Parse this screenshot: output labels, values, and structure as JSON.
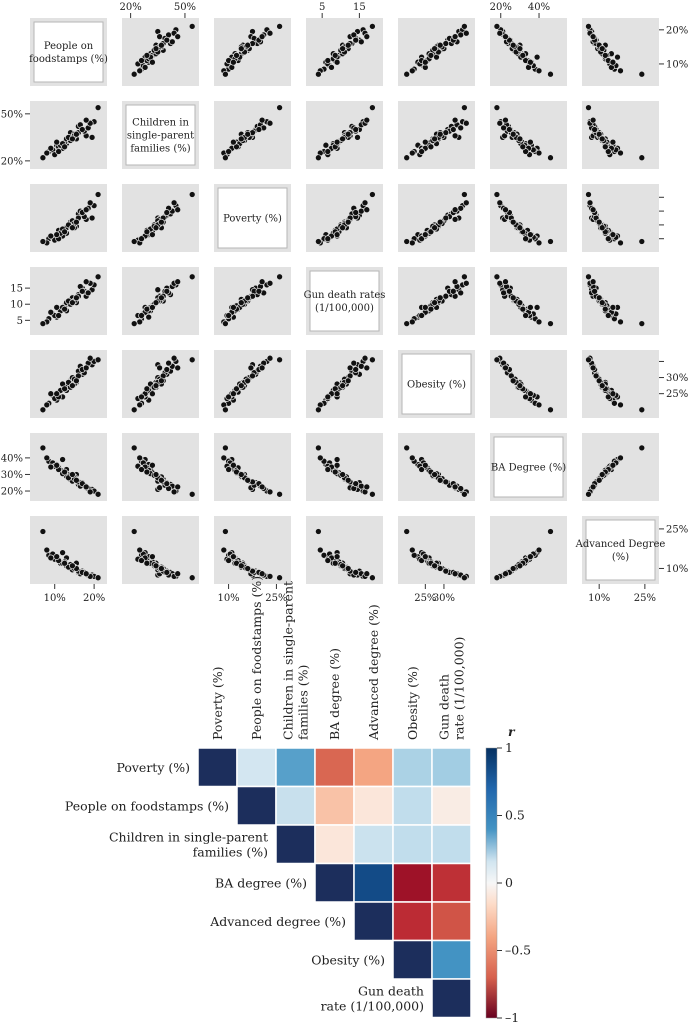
{
  "colors": {
    "panel_bg": "#e2e2e2",
    "point": "#111111",
    "diag_border": "#b5b5b5",
    "scale_neg": "#67001f",
    "scale_mid": "#f7f7f7",
    "scale_pos": "#053061"
  },
  "chart_data": [
    {
      "type": "scatter",
      "kind": "scatterplot-matrix",
      "variables": [
        {
          "label": "People on foodstamps (%)",
          "range": [
            5,
            22
          ]
        },
        {
          "label": "Children in single-parent families (%)",
          "range": [
            18,
            55
          ]
        },
        {
          "label": "Poverty (%)",
          "range": [
            7,
            28
          ]
        },
        {
          "label": "Gun death rates (1/100,000)",
          "range": [
            2,
            20
          ]
        },
        {
          "label": "Obesity (%)",
          "range": [
            19,
            37
          ]
        },
        {
          "label": "BA Degree (%)",
          "range": [
            17,
            52
          ]
        },
        {
          "label": "Advanced Degree (%)",
          "range": [
            6,
            28
          ]
        }
      ],
      "top_axis": [
        {
          "col": 1,
          "ticks": [
            20,
            50
          ],
          "labels": [
            "20%",
            "50%"
          ]
        },
        {
          "col": 3,
          "ticks": [
            5,
            15
          ],
          "labels": [
            "5",
            "15"
          ]
        },
        {
          "col": 5,
          "ticks": [
            20,
            40
          ],
          "labels": [
            "20%",
            "40%"
          ]
        }
      ],
      "bottom_axis": [
        {
          "col": 0,
          "ticks": [
            10,
            20
          ],
          "labels": [
            "10%",
            "20%"
          ]
        },
        {
          "col": 2,
          "ticks": [
            10,
            25
          ],
          "labels": [
            "10%",
            "25%"
          ]
        },
        {
          "col": 4,
          "ticks": [
            25,
            30
          ],
          "labels": [
            "25%",
            "30%"
          ]
        },
        {
          "col": 6,
          "ticks": [
            10,
            25
          ],
          "labels": [
            "10%",
            "25%"
          ]
        }
      ],
      "left_axis": [
        {
          "row": 1,
          "ticks": [
            20,
            50
          ],
          "labels": [
            "20%",
            "50%"
          ]
        },
        {
          "row": 3,
          "ticks": [
            5,
            10,
            15
          ],
          "labels": [
            "5",
            "10",
            "15"
          ]
        },
        {
          "row": 5,
          "ticks": [
            20,
            30,
            40
          ],
          "labels": [
            "20%",
            "30%",
            "40%"
          ]
        }
      ],
      "right_axis": [
        {
          "row": 0,
          "ticks": [
            10,
            20
          ],
          "labels": [
            "10%",
            "20%"
          ]
        },
        {
          "row": 2,
          "ticks": [
            10,
            15,
            20,
            25
          ],
          "labels": [
            "",
            "",
            "",
            ""
          ]
        },
        {
          "row": 4,
          "ticks": [
            25,
            30,
            35
          ],
          "labels": [
            "25%",
            "30%",
            ""
          ]
        },
        {
          "row": 6,
          "ticks": [
            10,
            25
          ],
          "labels": [
            "10%",
            "25%"
          ]
        }
      ],
      "points": [
        [
          15.5,
          34,
          14.5,
          10.5,
          28.5,
          30,
          12
        ],
        [
          13,
          31,
          12,
          8,
          26,
          33,
          14
        ],
        [
          17,
          40,
          18.5,
          15,
          31,
          25,
          9
        ],
        [
          19.5,
          35,
          17.5,
          14.5,
          34,
          21,
          7.5
        ],
        [
          10.5,
          30,
          11.5,
          6,
          23,
          36,
          14.5
        ],
        [
          12,
          28,
          11,
          9,
          24,
          39,
          16
        ],
        [
          14,
          38,
          16,
          11,
          29,
          27,
          10
        ],
        [
          8.5,
          26,
          10,
          5.5,
          22,
          38,
          15
        ],
        [
          16,
          42,
          19,
          13,
          32,
          24,
          8.5
        ],
        [
          18,
          36,
          17,
          12.5,
          33,
          22,
          8
        ],
        [
          11,
          29,
          13,
          8.5,
          25.5,
          34,
          13
        ],
        [
          13.5,
          33,
          15,
          10,
          27.5,
          30,
          11
        ],
        [
          15,
          37,
          14,
          11.5,
          28,
          28.5,
          10.5
        ],
        [
          20,
          45,
          22,
          16,
          35,
          20,
          7
        ],
        [
          9.5,
          27,
          10.5,
          7,
          24.5,
          37,
          15.5
        ],
        [
          12.5,
          32,
          12.5,
          9.5,
          26.5,
          31,
          12.5
        ],
        [
          14.5,
          35,
          16.5,
          12,
          30,
          26,
          9.5
        ],
        [
          17.5,
          39,
          18,
          14,
          31.5,
          23.5,
          8.5
        ],
        [
          10,
          24,
          9.5,
          6.5,
          23.5,
          35,
          13.5
        ],
        [
          16.5,
          43,
          20,
          15.5,
          33.5,
          23,
          8
        ],
        [
          11.5,
          30,
          12,
          8,
          26,
          32.5,
          12
        ],
        [
          13,
          34,
          14,
          10.5,
          27,
          29,
          11
        ],
        [
          18.5,
          41,
          21,
          13.5,
          34.5,
          21.5,
          7.5
        ],
        [
          8,
          25,
          8.5,
          4.5,
          21.5,
          40,
          17
        ],
        [
          15,
          36,
          15.5,
          11,
          29.5,
          27.5,
          10
        ],
        [
          12,
          31,
          13.5,
          9,
          28,
          30.5,
          12
        ],
        [
          19,
          44,
          23,
          16.5,
          36,
          19.5,
          7
        ],
        [
          14,
          33,
          14.5,
          10,
          27,
          29.5,
          11.5
        ],
        [
          9,
          28,
          11,
          7.5,
          25,
          34.5,
          14
        ],
        [
          16,
          38,
          17.5,
          12.5,
          30.5,
          25.5,
          9
        ],
        [
          13.5,
          35,
          15,
          11,
          28.5,
          28,
          10.5
        ],
        [
          11,
          26,
          10,
          6.5,
          24,
          33,
          13
        ],
        [
          17,
          40,
          19.5,
          14,
          32.5,
          24.5,
          8.5
        ],
        [
          12.5,
          29,
          12.5,
          8.5,
          26.5,
          31.5,
          12
        ],
        [
          15.5,
          37,
          16,
          12,
          29,
          26.5,
          10
        ],
        [
          10.5,
          32,
          11.5,
          9,
          25,
          35.5,
          14.5
        ],
        [
          18,
          46,
          20.5,
          17,
          33,
          22.5,
          8
        ],
        [
          14.5,
          34,
          14,
          10.5,
          27.5,
          30,
          11
        ],
        [
          7,
          22,
          9,
          4,
          20,
          46,
          24
        ],
        [
          21,
          54,
          26,
          18.5,
          35.5,
          18,
          6.5
        ]
      ]
    },
    {
      "type": "heatmap",
      "row_labels": [
        [
          "Poverty (%)"
        ],
        [
          "People on foodstamps (%)"
        ],
        [
          "Children in single-parent",
          "families (%)"
        ],
        [
          "BA degree (%)"
        ],
        [
          "Advanced degree (%)"
        ],
        [
          "Obesity (%)"
        ],
        [
          "Gun death",
          "rate (1/100,000)"
        ]
      ],
      "col_labels": [
        [
          "Poverty (%)"
        ],
        [
          "People on foodstamps (%)"
        ],
        [
          "Children in single-parent",
          "families (%)"
        ],
        [
          "BA degree (%)"
        ],
        [
          "Advanced degree (%)"
        ],
        [
          "Obesity (%)"
        ],
        [
          "Gun death",
          "rate (1/100,000)"
        ]
      ],
      "matrix": [
        [
          1,
          0.18,
          0.55,
          -0.38,
          -0.2,
          0.32,
          0.35
        ],
        [
          null,
          1,
          0.23,
          -0.12,
          -0.03,
          0.25,
          -0.02
        ],
        [
          null,
          null,
          1,
          -0.03,
          0.22,
          0.25,
          0.25
        ],
        [
          null,
          null,
          null,
          1,
          0.9,
          -0.78,
          -0.6
        ],
        [
          null,
          null,
          null,
          null,
          1,
          -0.62,
          -0.45
        ],
        [
          null,
          null,
          null,
          null,
          null,
          1,
          0.6
        ],
        [
          null,
          null,
          null,
          null,
          null,
          null,
          1
        ]
      ],
      "colorbar": {
        "title": "r",
        "range": [
          -1,
          1
        ],
        "ticks": [
          1,
          0.5,
          0,
          -0.5,
          -1
        ],
        "tick_labels": [
          "1",
          "0.5",
          "0",
          "–0.5",
          "–1"
        ]
      }
    }
  ]
}
